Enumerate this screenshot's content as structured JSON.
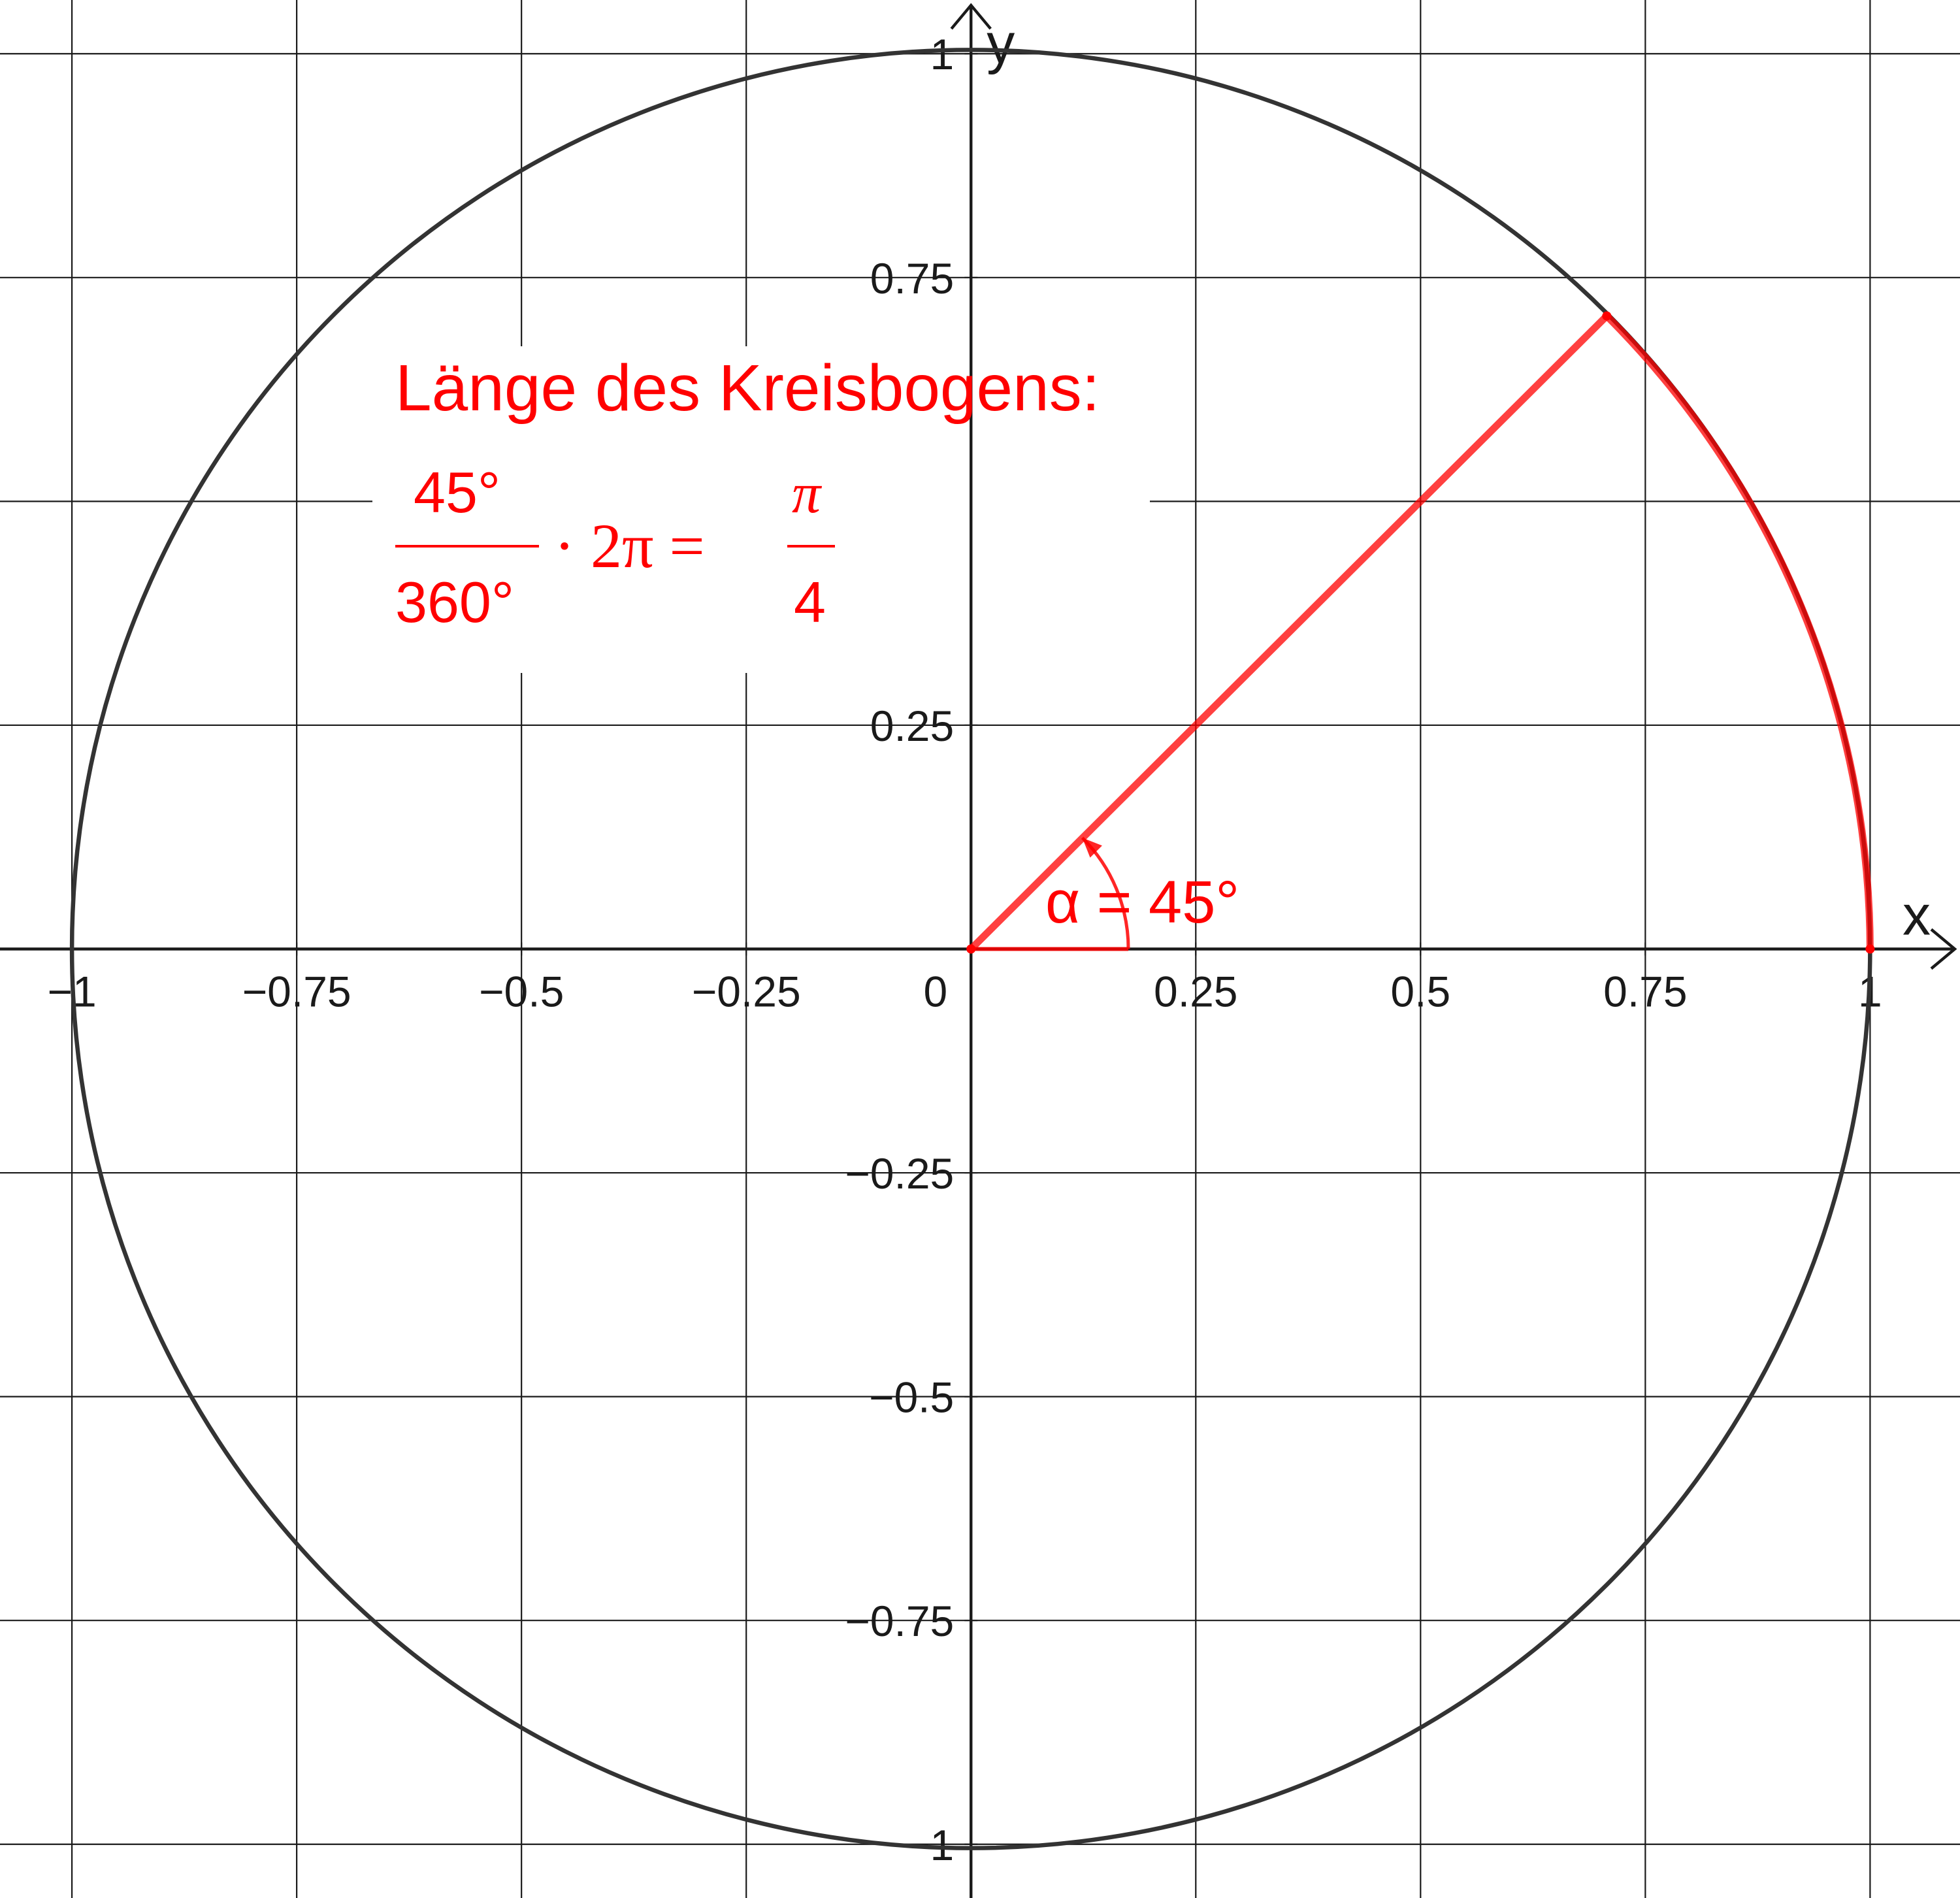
{
  "diagram": {
    "axes": {
      "x_label": "x",
      "y_label": "y",
      "x_ticks": [
        {
          "value": -1,
          "label": "−1"
        },
        {
          "value": -0.75,
          "label": "−0.75"
        },
        {
          "value": -0.5,
          "label": "−0.5"
        },
        {
          "value": -0.25,
          "label": "−0.25"
        },
        {
          "value": 0.25,
          "label": "0.25"
        },
        {
          "value": 0.5,
          "label": "0.5"
        },
        {
          "value": 0.75,
          "label": "0.75"
        },
        {
          "value": 1,
          "label": "1"
        }
      ],
      "y_ticks": [
        {
          "value": 1,
          "label": "1"
        },
        {
          "value": 0.75,
          "label": "0.75"
        },
        {
          "value": 0.25,
          "label": "0.25"
        },
        {
          "value": -0.25,
          "label": "−0.25"
        },
        {
          "value": -0.5,
          "label": "−0.5"
        },
        {
          "value": -0.75,
          "label": "−0.75"
        },
        {
          "value": -1,
          "label": "−1"
        }
      ],
      "origin_label": "0",
      "x_range": [
        -1.08,
        1.1
      ],
      "y_range": [
        -1.06,
        1.06
      ],
      "grid_step": 0.25
    },
    "circle": {
      "center": [
        0,
        0
      ],
      "radius": 1,
      "color": "#333333"
    },
    "angle": {
      "degrees": 45,
      "label": "α = 45°",
      "color": "#ff0000"
    },
    "formula": {
      "heading": "Länge des Kreisbogens:",
      "numerator": "45°",
      "denominator": "360°",
      "middle": "· 2π =",
      "rhs_numerator": "π",
      "rhs_denominator": "4"
    }
  }
}
